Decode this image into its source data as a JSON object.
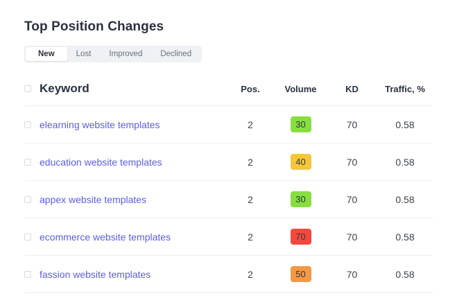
{
  "page": {
    "title": "Top Position Changes"
  },
  "tabs": [
    {
      "label": "New",
      "active": true
    },
    {
      "label": "Lost",
      "active": false
    },
    {
      "label": "Improved",
      "active": false
    },
    {
      "label": "Declined",
      "active": false
    }
  ],
  "table": {
    "columns": {
      "keyword": "Keyword",
      "pos": "Pos.",
      "volume": "Volume",
      "kd": "KD",
      "traffic": "Traffic, %"
    },
    "rows": [
      {
        "keyword": "elearning website templates",
        "pos": "2",
        "volume": "30",
        "volume_color": "#86df3f",
        "kd": "70",
        "traffic": "0.58"
      },
      {
        "keyword": "education website templates",
        "pos": "2",
        "volume": "40",
        "volume_color": "#f5c63c",
        "kd": "70",
        "traffic": "0.58"
      },
      {
        "keyword": "appex website templates",
        "pos": "2",
        "volume": "30",
        "volume_color": "#86df3f",
        "kd": "70",
        "traffic": "0.58"
      },
      {
        "keyword": "ecommerce website templates",
        "pos": "2",
        "volume": "70",
        "volume_color": "#f4483c",
        "kd": "70",
        "traffic": "0.58"
      },
      {
        "keyword": "fassion website templates",
        "pos": "2",
        "volume": "50",
        "volume_color": "#f39844",
        "kd": "70",
        "traffic": "0.58"
      }
    ]
  },
  "colors": {
    "link": "#5c5ce5",
    "heading": "#2b3040",
    "tab_bar_bg": "#f0f1f4",
    "divider": "#eef0f2",
    "volume_green": "#86df3f",
    "volume_yellow": "#f5c63c",
    "volume_orange": "#f39844",
    "volume_red": "#f4483c"
  }
}
